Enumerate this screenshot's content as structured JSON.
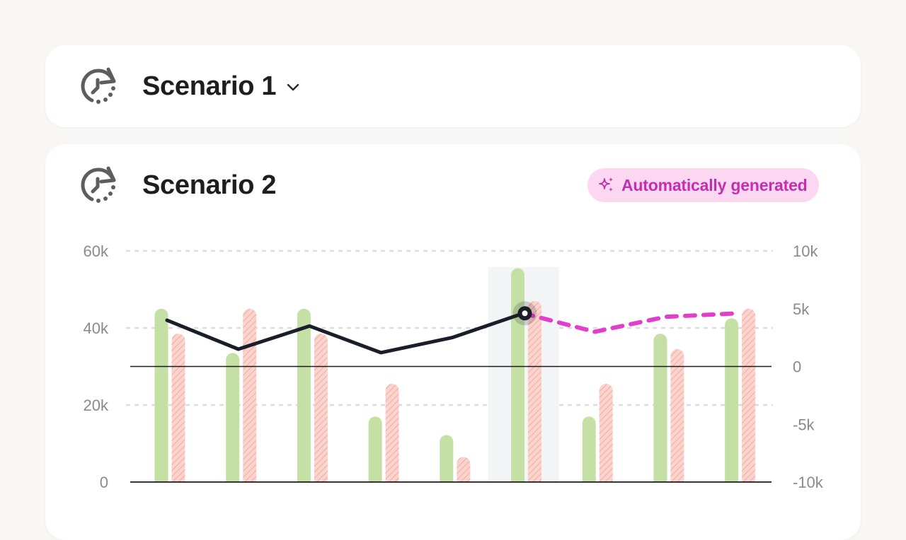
{
  "scenarios": [
    {
      "title": "Scenario 1",
      "icon": "clock-refresh-icon",
      "expand_icon": "chevron-down-icon"
    },
    {
      "title": "Scenario 2",
      "icon": "clock-refresh-icon",
      "badge": {
        "label": "Automatically generated",
        "icon": "sparkles-icon"
      }
    }
  ],
  "colors": {
    "background": "#f8f7f5",
    "card": "#ffffff",
    "bar_green": "#c5e0a5",
    "bar_red": "#fbc9c2",
    "line_actual": "#1a1d2a",
    "line_forecast": "#e23dcb",
    "badge_bg": "#fbd7f2",
    "badge_text": "#c42fb0"
  },
  "chart_data": {
    "type": "bar",
    "categories": [
      "",
      "",
      "",
      "",
      "",
      "",
      "",
      "",
      ""
    ],
    "series": [
      {
        "kind": "bar",
        "style": "solid-green",
        "axis": "left",
        "values": [
          45000,
          33500,
          45000,
          17000,
          12200,
          55500,
          17000,
          38500,
          42500
        ]
      },
      {
        "kind": "bar",
        "style": "hatched-red",
        "axis": "left",
        "values": [
          38500,
          45000,
          38500,
          25500,
          6500,
          47000,
          25500,
          34500,
          45000
        ]
      },
      {
        "kind": "line",
        "style": "solid",
        "axis": "right",
        "values": [
          4000,
          1500,
          3500,
          1200,
          2500,
          4600,
          null,
          null,
          null
        ]
      },
      {
        "kind": "line",
        "style": "dashed",
        "axis": "right",
        "values": [
          null,
          null,
          null,
          null,
          null,
          4600,
          3000,
          4300,
          4600
        ]
      }
    ],
    "highlight_index": 5,
    "y_left": {
      "ticks": [
        "0",
        "20k",
        "40k",
        "60k"
      ],
      "tick_values": [
        0,
        20000,
        40000,
        60000
      ],
      "range": [
        0,
        60000
      ]
    },
    "y_right": {
      "ticks": [
        "-10k",
        "-5k",
        "0",
        "5k",
        "10k"
      ],
      "tick_values": [
        -10000,
        -5000,
        0,
        5000,
        10000
      ],
      "range": [
        -10000,
        10000
      ]
    },
    "grid": true
  }
}
